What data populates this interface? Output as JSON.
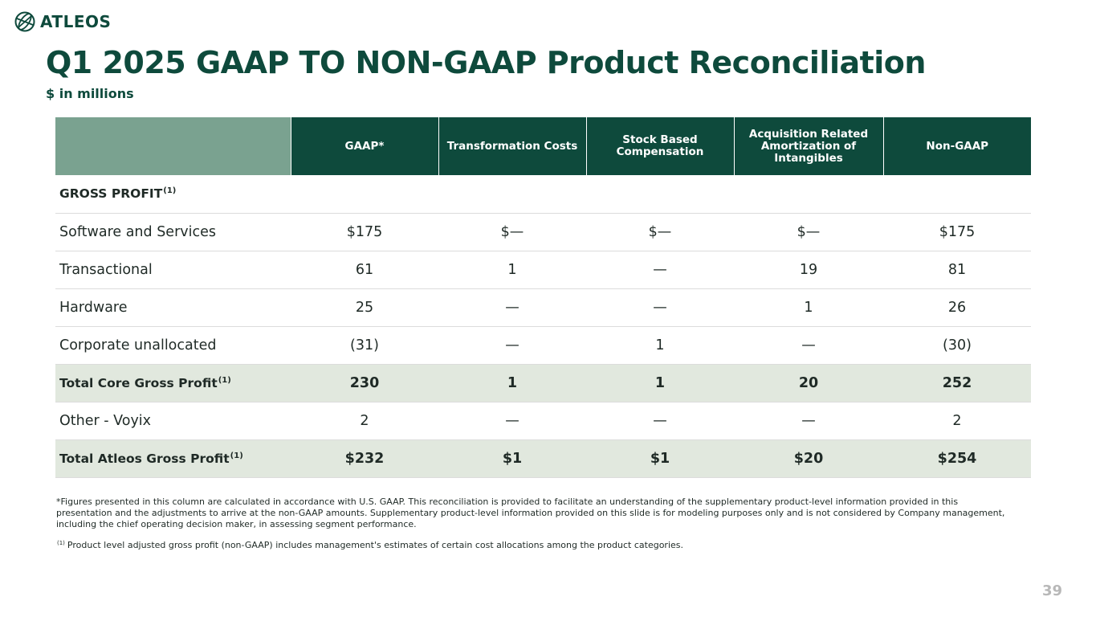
{
  "brand": {
    "name": "ATLEOS",
    "logo_icon": "globe-icon",
    "color": "#0e4a3c"
  },
  "title": "Q1 2025 GAAP TO NON-GAAP Product Reconciliation",
  "subtitle": "$ in millions",
  "table": {
    "columns": [
      "GAAP*",
      "Transformation Costs",
      "Stock Based Compensation",
      "Acquisition Related Amortization of Intangibles",
      "Non-GAAP"
    ],
    "section_label": "GROSS PROFIT",
    "section_sup": "(1)",
    "rows": [
      {
        "label": "Software and Services",
        "values": [
          "$175",
          "$—",
          "$—",
          "$—",
          "$175"
        ]
      },
      {
        "label": "Transactional",
        "values": [
          "61",
          "1",
          "—",
          "19",
          "81"
        ]
      },
      {
        "label": "Hardware",
        "values": [
          "25",
          "—",
          "—",
          "1",
          "26"
        ]
      },
      {
        "label": "Corporate unallocated",
        "values": [
          "(31)",
          "—",
          "1",
          "—",
          "(30)"
        ]
      },
      {
        "label": "Total Core Gross Profit",
        "sup": "(1)",
        "values": [
          "230",
          "1",
          "1",
          "20",
          "252"
        ]
      },
      {
        "label": "Other - Voyix",
        "values": [
          "2",
          "—",
          "—",
          "—",
          "2"
        ]
      },
      {
        "label": "Total Atleos Gross Profit",
        "sup": "(1)",
        "values": [
          "$232",
          "$1",
          "$1",
          "$20",
          "$254"
        ]
      }
    ]
  },
  "footnotes": {
    "f1": "*Figures presented in this column are calculated in accordance with U.S. GAAP. This reconciliation is provided to facilitate an understanding of the supplementary product-level information provided  in this presentation and the adjustments to arrive at the non-GAAP amounts. Supplementary product-level information provided on this slide is for modeling purposes only and is not considered by Company management, including the chief operating decision maker, in assessing segment performance.",
    "f2_marker": "(1)",
    "f2": "Product level adjusted gross profit (non-GAAP) includes management's estimates of certain cost allocations among the product categories."
  },
  "page_number": "39"
}
